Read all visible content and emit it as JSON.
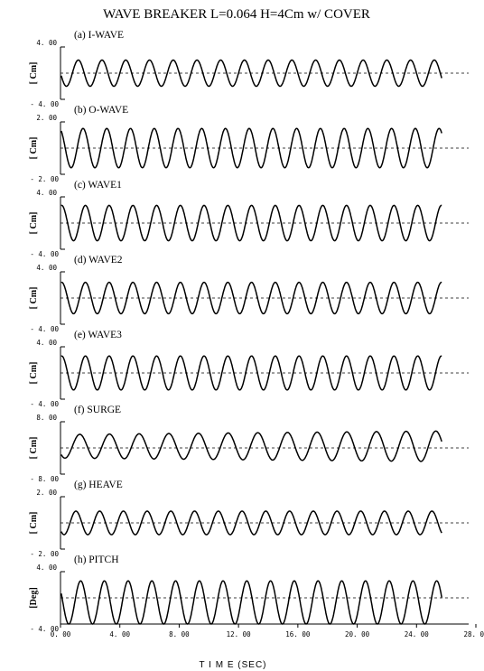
{
  "chart_data": {
    "type": "line",
    "title": "WAVE BREAKER L=0.064 H=4Cm w/  COVER",
    "xlabel": "T I M E (SEC)",
    "x_ticks": [
      "0. 00",
      "4. 00",
      "8. 00",
      "12. 00",
      "16. 00",
      "20. 00",
      "24. 00",
      "28. 00"
    ],
    "xlim": [
      0,
      28
    ],
    "series_end_time": 25.7,
    "panels": [
      {
        "name": "i-wave",
        "title": "(a) I-WAVE",
        "ylabel": "[ Cm]",
        "ylim": [
          -4,
          4
        ],
        "ytick_top": "4. 00",
        "ytick_bottom": "- 4. 00",
        "amplitude": 2.0,
        "period": 1.6,
        "phase": 0.5,
        "offset": 0.0,
        "amp_growth": 0.0
      },
      {
        "name": "o-wave",
        "title": "(b) O-WAVE",
        "ylabel": "[ Cm]",
        "ylim": [
          -2,
          2
        ],
        "ytick_top": "2. 00",
        "ytick_bottom": "- 2. 00",
        "amplitude": 1.5,
        "period": 1.6,
        "phase": 0.3,
        "offset": 0.0,
        "amp_growth": 0.0
      },
      {
        "name": "wave1",
        "title": "(c) WAVE1",
        "ylabel": "[ Cm]",
        "ylim": [
          -4,
          4
        ],
        "ytick_top": "4. 00",
        "ytick_bottom": "- 4. 00",
        "amplitude": 2.7,
        "period": 1.6,
        "phase": 0.2,
        "offset": 0.0,
        "amp_growth": 0.0
      },
      {
        "name": "wave2",
        "title": "(d) WAVE2",
        "ylabel": "[ Cm]",
        "ylim": [
          -4,
          4
        ],
        "ytick_top": "4. 00",
        "ytick_bottom": "- 4. 00",
        "amplitude": 2.4,
        "period": 1.6,
        "phase": 0.2,
        "offset": 0.0,
        "amp_growth": 0.0
      },
      {
        "name": "wave3",
        "title": "(e) WAVE3",
        "ylabel": "[ Cm]",
        "ylim": [
          -4,
          4
        ],
        "ytick_top": "4. 00",
        "ytick_bottom": "- 4. 00",
        "amplitude": 2.6,
        "period": 1.6,
        "phase": 0.2,
        "offset": 0.0,
        "amp_growth": 0.0
      },
      {
        "name": "surge",
        "title": "(f) SURGE",
        "ylabel": "[ Cm]",
        "ylim": [
          -8,
          8
        ],
        "ytick_top": "8. 00",
        "ytick_bottom": "- 8. 00",
        "amplitude": 3.6,
        "period": 2.0,
        "phase": 0.6,
        "offset": 0.5,
        "amp_growth": 0.3
      },
      {
        "name": "heave",
        "title": "(g) HEAVE",
        "ylabel": "[ Cm]",
        "ylim": [
          -2,
          2
        ],
        "ytick_top": "2. 00",
        "ytick_bottom": "- 2. 00",
        "amplitude": 0.9,
        "period": 1.6,
        "phase": 0.6,
        "offset": 0.0,
        "amp_growth": 0.0
      },
      {
        "name": "pitch",
        "title": "(h) PITCH",
        "ylabel": "[Deg]",
        "ylim": [
          -4,
          4
        ],
        "ytick_top": "4. 00",
        "ytick_bottom": "- 4. 00",
        "amplitude": 3.3,
        "period": 1.6,
        "phase": 0.4,
        "offset": -0.7,
        "amp_growth": 0.0
      }
    ]
  }
}
